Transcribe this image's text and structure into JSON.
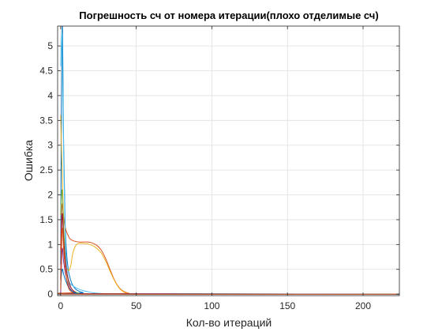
{
  "chart_data": {
    "type": "line",
    "title": "Погрешность сч от номера итерации(плохо отделимые сч)",
    "xlabel": "Кол-во итераций",
    "ylabel": "Ошибка",
    "xlim": [
      -2,
      224
    ],
    "ylim": [
      -0.03,
      5.4
    ],
    "xticks": [
      0,
      50,
      100,
      150,
      200
    ],
    "xtick_labels": [
      "0",
      "50",
      "100",
      "150",
      "200"
    ],
    "yticks": [
      0,
      0.5,
      1,
      1.5,
      2,
      2.5,
      3,
      3.5,
      4,
      4.5,
      5
    ],
    "ytick_labels": [
      "0",
      "0.5",
      "1",
      "1.5",
      "2",
      "2.5",
      "3",
      "3.5",
      "4",
      "4.5",
      "5"
    ],
    "grid": true,
    "box": true,
    "series": [
      {
        "color": "#0072BD",
        "x": [
          0,
          1,
          2,
          3,
          4,
          5,
          6,
          7,
          8,
          10,
          12,
          15,
          20,
          224
        ],
        "y": [
          0.6,
          5.4,
          3.0,
          1.4,
          0.8,
          0.5,
          0.35,
          0.25,
          0.18,
          0.1,
          0.06,
          0.03,
          0.01,
          0.0
        ]
      },
      {
        "color": "#D95319",
        "x": [
          0,
          1,
          2,
          3,
          4,
          5,
          6,
          8,
          10,
          12,
          15,
          18,
          21,
          24,
          27,
          30,
          33,
          36,
          39,
          42,
          45,
          50,
          224
        ],
        "y": [
          0.9,
          1.8,
          1.55,
          1.35,
          1.25,
          1.18,
          1.12,
          1.08,
          1.06,
          1.05,
          1.05,
          1.05,
          1.03,
          0.98,
          0.88,
          0.7,
          0.47,
          0.26,
          0.12,
          0.05,
          0.02,
          0.0,
          0.0
        ]
      },
      {
        "color": "#EDB120",
        "x": [
          0,
          1,
          2,
          3,
          4,
          5,
          6,
          7,
          8,
          10,
          12,
          15,
          18,
          21,
          24,
          27,
          30,
          33,
          36,
          39,
          42,
          45,
          48,
          224
        ],
        "y": [
          3.6,
          2.5,
          1.4,
          0.8,
          0.55,
          0.48,
          0.5,
          0.62,
          0.82,
          0.98,
          1.02,
          1.02,
          1.01,
          0.98,
          0.92,
          0.82,
          0.65,
          0.44,
          0.25,
          0.11,
          0.04,
          0.01,
          0.0,
          0.0
        ]
      },
      {
        "color": "#7E2F8E",
        "x": [
          0,
          1,
          2,
          3,
          4,
          5,
          6,
          8,
          10,
          12,
          15,
          224
        ],
        "y": [
          0.0,
          0.9,
          0.65,
          0.45,
          0.3,
          0.2,
          0.12,
          0.05,
          0.02,
          0.01,
          0.0,
          0.0
        ]
      },
      {
        "color": "#77AC30",
        "x": [
          0,
          1,
          2,
          3,
          4,
          5,
          6,
          7,
          8,
          10,
          12,
          15,
          224
        ],
        "y": [
          1.6,
          2.1,
          1.3,
          0.8,
          0.45,
          0.28,
          0.18,
          0.12,
          0.08,
          0.04,
          0.02,
          0.0,
          0.0
        ]
      },
      {
        "color": "#4DBEEE",
        "x": [
          0,
          1,
          2,
          3,
          4,
          5,
          6,
          8,
          10,
          12,
          15,
          18,
          21,
          24,
          28,
          32,
          224
        ],
        "y": [
          4.6,
          5.2,
          2.8,
          1.2,
          0.55,
          0.32,
          0.22,
          0.17,
          0.13,
          0.1,
          0.07,
          0.05,
          0.03,
          0.02,
          0.01,
          0.0,
          0.0
        ]
      },
      {
        "color": "#A2142F",
        "x": [
          0,
          1,
          2,
          3,
          4,
          5,
          6,
          7,
          8,
          10,
          12,
          224
        ],
        "y": [
          0.3,
          1.6,
          1.1,
          0.7,
          0.45,
          0.3,
          0.2,
          0.12,
          0.08,
          0.03,
          0.01,
          0.0
        ]
      },
      {
        "color": "#0072BD",
        "x": [
          0,
          1,
          2,
          3,
          4,
          5,
          6,
          8,
          10,
          12,
          15,
          224
        ],
        "y": [
          0.2,
          0.5,
          0.4,
          0.3,
          0.22,
          0.15,
          0.1,
          0.05,
          0.02,
          0.01,
          0.0,
          0.0
        ]
      },
      {
        "color": "#D95319",
        "x": [
          0,
          1,
          2,
          3,
          4,
          5,
          6,
          8,
          10,
          224
        ],
        "y": [
          0.1,
          1.3,
          0.9,
          0.55,
          0.3,
          0.15,
          0.08,
          0.03,
          0.0,
          0.0
        ]
      }
    ]
  }
}
